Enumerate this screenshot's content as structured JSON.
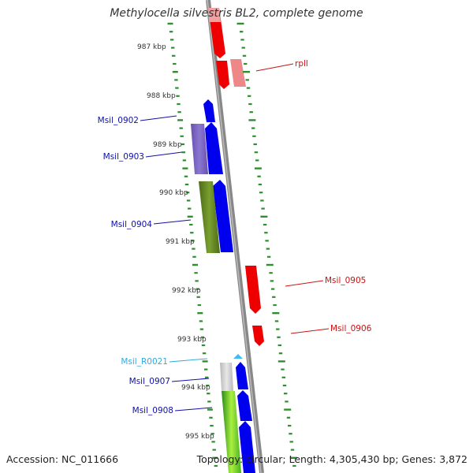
{
  "title": "Methylocella silvestris BL2, complete genome",
  "footer": {
    "accession": "Accession: NC_011666",
    "summary": "Topology: circular; Length: 4,305,430 bp; Genes: 3,872"
  },
  "colors": {
    "forward_cds": "#0000ee",
    "reverse_cds": "#ee0000",
    "pseudogene": "#ee8888",
    "trna": "#44bbee",
    "rrna_pale": "#aaaaaa",
    "tick": "#2f8f2f",
    "backbone": "#888888",
    "gene_label": "#1010aa",
    "reverse_label": "#cc1111",
    "trna_label": "#33aadd"
  },
  "ruler": {
    "labels": [
      "987 kbp",
      "988 kbp",
      "989 kbp",
      "990 kbp",
      "991 kbp",
      "992 kbp",
      "993 kbp",
      "994 kbp",
      "995 kbp"
    ]
  },
  "gene_labels": [
    {
      "text": "rpll",
      "kind": "reverse"
    },
    {
      "text": "Msil_0902",
      "kind": "forward"
    },
    {
      "text": "Msil_0903",
      "kind": "forward"
    },
    {
      "text": "Msil_0904",
      "kind": "forward"
    },
    {
      "text": "Msil_0905",
      "kind": "reverse"
    },
    {
      "text": "Msil_0906",
      "kind": "reverse"
    },
    {
      "text": "Msil_R0021",
      "kind": "trna"
    },
    {
      "text": "Msil_0907",
      "kind": "forward"
    },
    {
      "text": "Msil_0908",
      "kind": "forward"
    }
  ]
}
